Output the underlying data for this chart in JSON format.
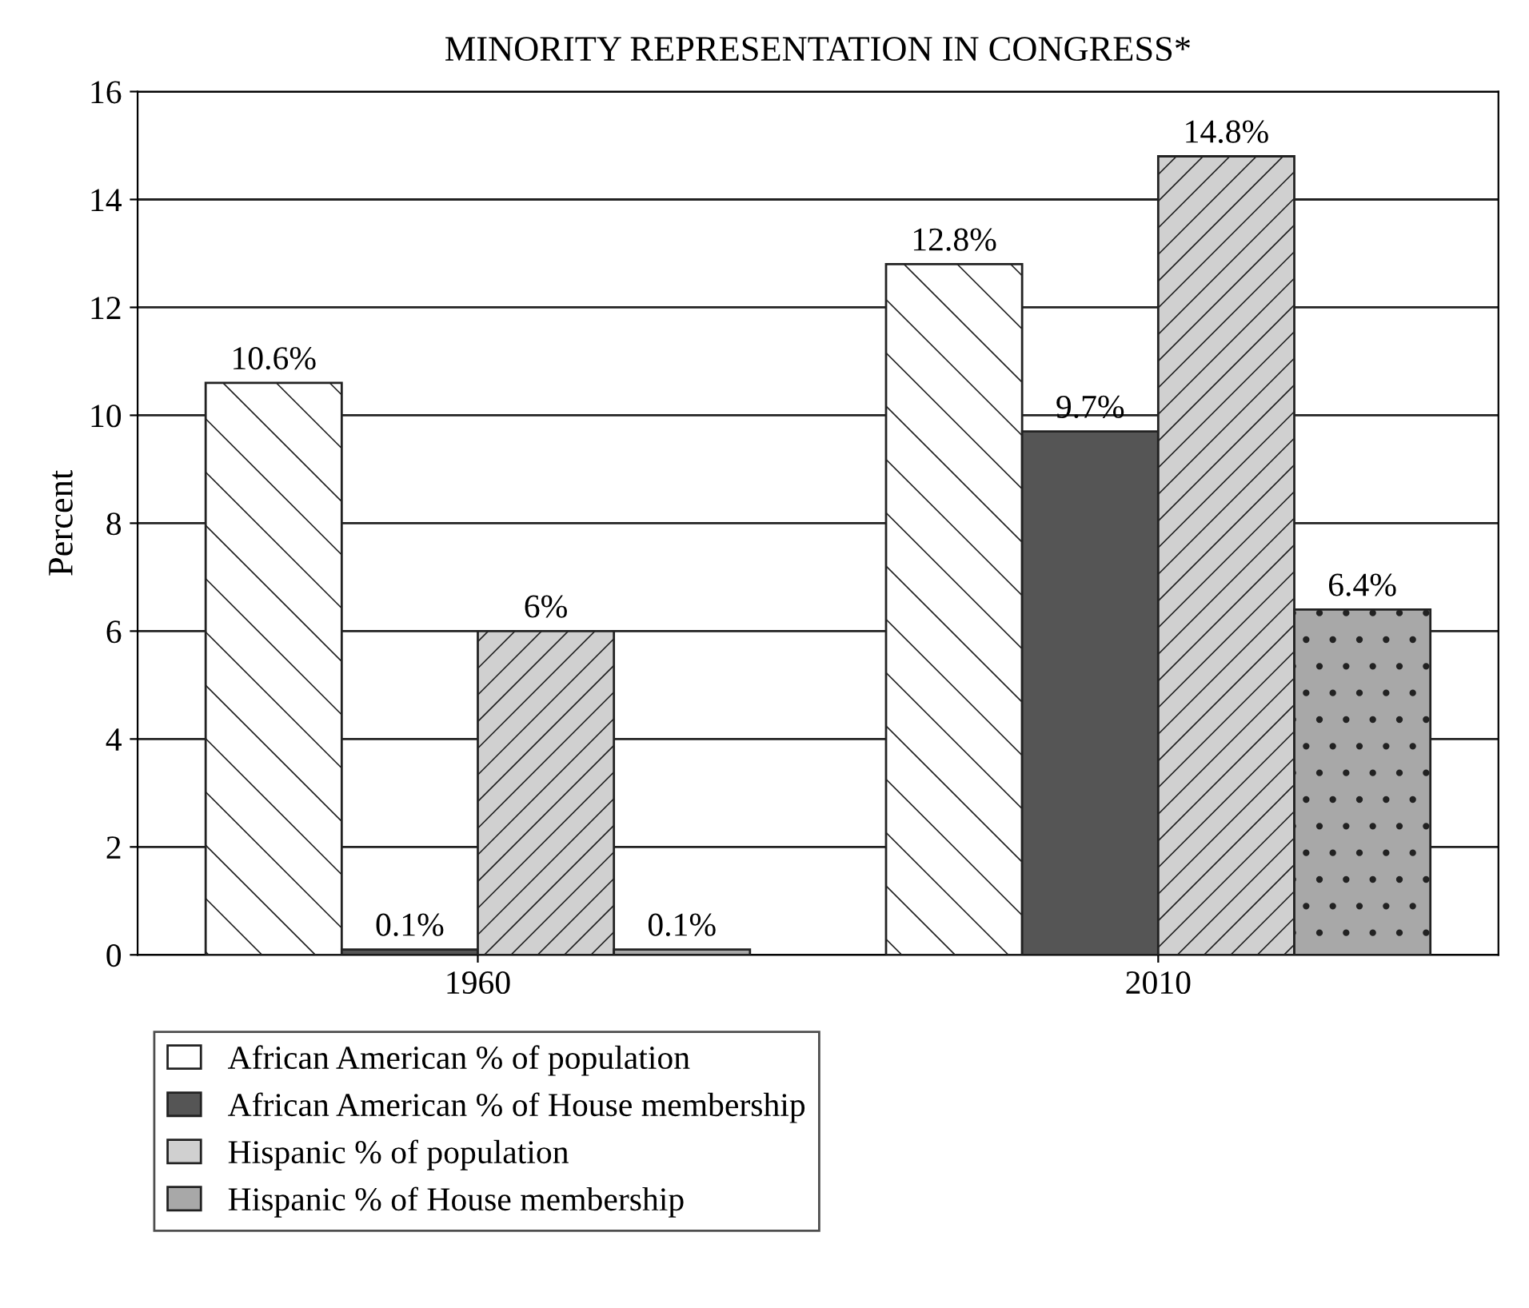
{
  "chart_data": {
    "type": "bar",
    "title": "MINORITY REPRESENTATION IN CONGRESS*",
    "ylabel": "Percent",
    "categories": [
      "1960",
      "2010"
    ],
    "series": [
      {
        "name": "African American % of population",
        "color": "#ffffff",
        "values": [
          10.6,
          12.8
        ],
        "value_labels": [
          "10.6%",
          "12.8%"
        ]
      },
      {
        "name": "African American % of House membership",
        "color": "#555555",
        "values": [
          0.1,
          9.7
        ],
        "value_labels": [
          "0.1%",
          "9.7%"
        ]
      },
      {
        "name": "Hispanic % of population",
        "color": "#d0d0d0",
        "values": [
          6,
          14.8
        ],
        "value_labels": [
          "6%",
          "14.8%"
        ]
      },
      {
        "name": "Hispanic % of House membership",
        "color": "#a8a8a8",
        "values": [
          0.1,
          6.4
        ],
        "value_labels": [
          "0.1%",
          "6.4%"
        ]
      }
    ],
    "ylim": [
      0,
      16
    ],
    "yticks": [
      0,
      2,
      4,
      6,
      8,
      10,
      12,
      14,
      16
    ],
    "grid": "y",
    "legend": "bottom"
  }
}
